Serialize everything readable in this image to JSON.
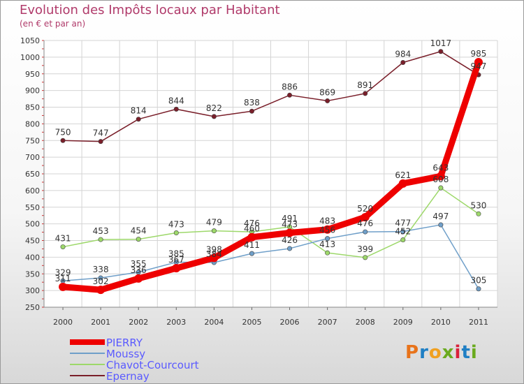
{
  "title": "Evolution des Impôts locaux par Habitant",
  "subtitle": "(en € et par an)",
  "logo": {
    "text": "Proxiti",
    "colors": [
      "#e8731a",
      "#1f7fc4",
      "#f0a020",
      "#6aaa1e",
      "#d9223b",
      "#1f7fc4",
      "#6aaa1e"
    ]
  },
  "chart_data": {
    "type": "line",
    "title": "Evolution des Impôts locaux par Habitant",
    "subtitle": "(en € et par an)",
    "xlabel": "",
    "ylabel": "",
    "ylim": [
      250,
      1050
    ],
    "y_ticks": [
      250,
      300,
      350,
      400,
      450,
      500,
      550,
      600,
      650,
      700,
      750,
      800,
      850,
      900,
      950,
      1000,
      1050
    ],
    "x": [
      "2000",
      "2001",
      "2002",
      "2003",
      "2004",
      "2005",
      "2006",
      "2007",
      "2008",
      "2009",
      "2010",
      "2011"
    ],
    "grid": true,
    "legend_position": "bottom-left",
    "series": [
      {
        "name": "Epernay",
        "color": "#7a1f2a",
        "values": [
          750,
          747,
          814,
          844,
          822,
          838,
          886,
          869,
          891,
          984,
          1017,
          947
        ]
      },
      {
        "name": "Chavot-Courcourt",
        "color": "#9dd86a",
        "values": [
          431,
          453,
          454,
          473,
          479,
          476,
          491,
          413,
          399,
          452,
          608,
          530
        ]
      },
      {
        "name": "Moussy",
        "color": "#6f9fc9",
        "values": [
          329,
          338,
          355,
          385,
          384,
          411,
          426,
          456,
          476,
          477,
          497,
          305
        ]
      },
      {
        "name": "PIERRY",
        "color": "#ee0000",
        "values": [
          311,
          302,
          336,
          367,
          398,
          460,
          473,
          483,
          520,
          621,
          643,
          985
        ]
      }
    ],
    "data_labels": {
      "Epernay": [
        "750",
        "747",
        "814",
        "844",
        "822",
        "838",
        "886",
        "869",
        "891",
        "984",
        "1017",
        "947"
      ],
      "Chavot-Courcourt": [
        "431",
        "453",
        "454",
        "473",
        "479",
        "476",
        "491",
        "413",
        "399",
        "452",
        "608",
        "530"
      ],
      "Moussy": [
        "329",
        "338",
        "355",
        "385",
        "384",
        "411",
        "426",
        "456",
        "476",
        "477",
        "497",
        "305"
      ],
      "PIERRY": [
        "311",
        "302",
        "336",
        "367",
        "398",
        "460",
        "473",
        "483",
        "520",
        "621",
        "643",
        "985"
      ]
    }
  },
  "legend": [
    {
      "label": "PIERRY",
      "color": "#ee0000",
      "thick": true
    },
    {
      "label": "Moussy",
      "color": "#6f9fc9",
      "thick": false
    },
    {
      "label": "Chavot-Courcourt",
      "color": "#9dd86a",
      "thick": false
    },
    {
      "label": "Epernay",
      "color": "#7a1f2a",
      "thick": false
    }
  ]
}
